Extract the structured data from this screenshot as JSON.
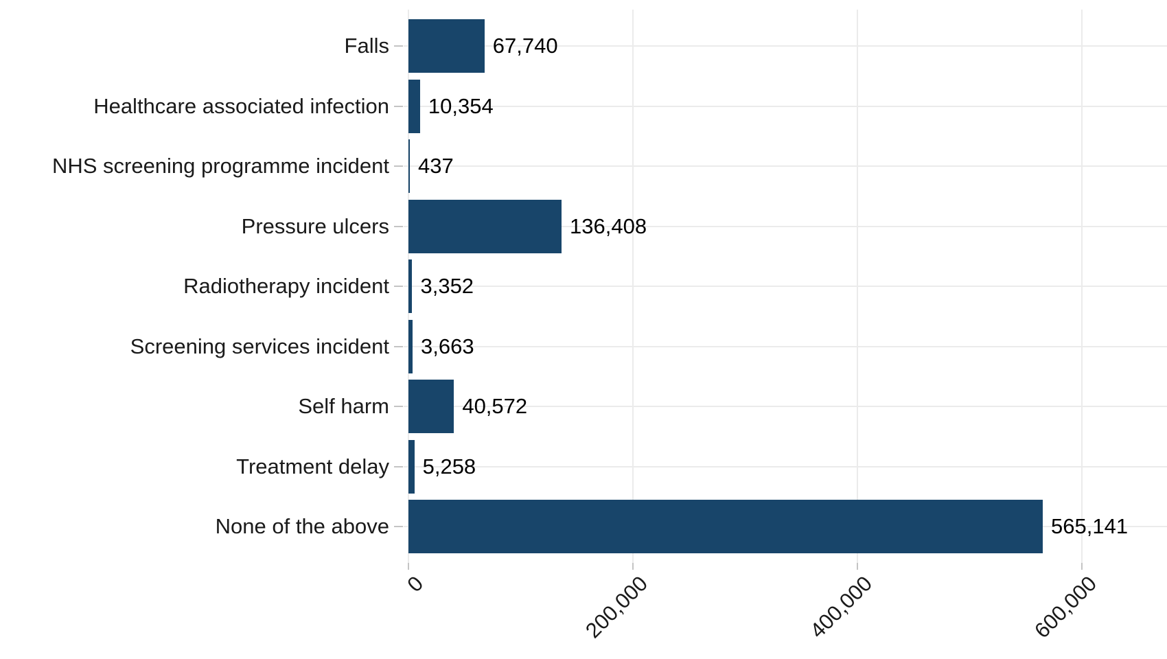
{
  "chart_data": {
    "type": "bar",
    "orientation": "horizontal",
    "title": "",
    "xlabel": "",
    "ylabel": "",
    "legend": "none",
    "grid": "major-only",
    "categories": [
      "Falls",
      "Healthcare associated infection",
      "NHS screening programme incident",
      "Pressure ulcers",
      "Radiotherapy incident",
      "Screening services incident",
      "Self harm",
      "Treatment delay",
      "None of the above"
    ],
    "values": [
      67740,
      10354,
      437,
      136408,
      3352,
      3663,
      40572,
      5258,
      565141
    ],
    "value_labels": [
      "67,740",
      "10,354",
      "437",
      "136,408",
      "3,352",
      "3,663",
      "40,572",
      "5,258",
      "565,141"
    ],
    "x_axis": {
      "ticks": [
        0,
        200000,
        400000,
        600000
      ],
      "tick_labels": [
        "0",
        "200,000",
        "400,000",
        "600,000"
      ],
      "range": [
        0,
        600000
      ],
      "tick_label_angle_deg": 45
    },
    "colors": {
      "bar": "#18456a",
      "gridline": "#ebebeb",
      "tick": "#c4c4c4",
      "text": "#1a1a1a",
      "background": "#ffffff"
    }
  }
}
